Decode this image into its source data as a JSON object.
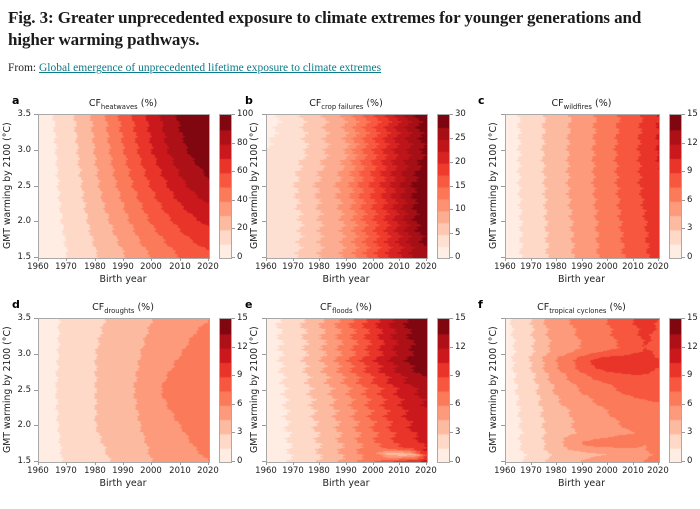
{
  "header": {
    "title": "Fig. 3: Greater unprecedented exposure to climate extremes for younger generations and higher warming pathways.",
    "source_prefix": "From: ",
    "source_link_text": "Global emergence of unprecedented lifetime exposure to climate extremes"
  },
  "colors": {
    "link": "#0c7b8a",
    "axis": "#9a9a9a",
    "text": "#222222",
    "reds_colormap_stops": [
      "#fff5f0",
      "#fee0d2",
      "#fcbba1",
      "#fc9272",
      "#fb6a4a",
      "#ef3b2c",
      "#cb181d",
      "#a50f15",
      "#67000d"
    ]
  },
  "chart_data": [
    {
      "type": "heatmap",
      "letter": "a",
      "title": {
        "prefix": "CF",
        "sub": "heatwaves",
        "suffix": " (%)"
      },
      "xlabel": "Birth year",
      "ylabel": "GMT warming by 2100 (°C)",
      "xlim": [
        1960,
        2020
      ],
      "ylim": [
        1.5,
        3.5
      ],
      "x_ticks": [
        1960,
        1970,
        1980,
        1990,
        2000,
        2010,
        2020
      ],
      "y_ticks": [
        1.5,
        2.0,
        2.5,
        3.0,
        3.5
      ],
      "y_tick_labels_shown": true,
      "colorbar": {
        "min": 0,
        "max": 100,
        "bands": 10,
        "ticks": [
          0,
          20,
          40,
          60,
          80,
          100
        ]
      },
      "wiggle_amp_years": 0.8,
      "grid": {
        "x": [
          1960,
          1965,
          1970,
          1975,
          1980,
          1985,
          1990,
          1995,
          2000,
          2005,
          2010,
          2015,
          2020
        ],
        "y": [
          3.5,
          3.0,
          2.5,
          2.0,
          1.5
        ],
        "values": [
          [
            5,
            10,
            16,
            24,
            33,
            43,
            54,
            64,
            74,
            84,
            92,
            97,
            100
          ],
          [
            5,
            9,
            15,
            22,
            31,
            40,
            50,
            60,
            70,
            79,
            87,
            93,
            97
          ],
          [
            4,
            8,
            14,
            20,
            28,
            36,
            44,
            53,
            61,
            69,
            77,
            83,
            88
          ],
          [
            4,
            7,
            12,
            17,
            24,
            30,
            37,
            44,
            51,
            57,
            63,
            68,
            72
          ],
          [
            3,
            6,
            10,
            14,
            19,
            24,
            29,
            35,
            40,
            45,
            50,
            54,
            57
          ]
        ]
      }
    },
    {
      "type": "heatmap",
      "letter": "b",
      "title": {
        "prefix": "CF",
        "sub": "crop failures",
        "suffix": " (%)"
      },
      "xlabel": "Birth year",
      "ylabel": "GMT warming by 2100 (°C)",
      "xlim": [
        1960,
        2020
      ],
      "ylim": [
        1.5,
        3.5
      ],
      "x_ticks": [
        1960,
        1970,
        1980,
        1990,
        2000,
        2010,
        2020
      ],
      "y_ticks": [
        1.5,
        2.0,
        2.5,
        3.0,
        3.5
      ],
      "y_tick_labels_shown": false,
      "colorbar": {
        "min": 0,
        "max": 30,
        "bands": 12,
        "ticks": [
          0,
          5,
          10,
          15,
          20,
          25,
          30
        ]
      },
      "wiggle_amp_years": 1.8,
      "grid": {
        "x": [
          1960,
          1965,
          1970,
          1975,
          1980,
          1985,
          1990,
          1995,
          2000,
          2005,
          2010,
          2015,
          2020
        ],
        "y": [
          3.5,
          3.0,
          2.5,
          2.0,
          1.5
        ],
        "values": [
          [
            1.5,
            2.6,
            4.0,
            5.5,
            7.0,
            8.5,
            10.5,
            13.5,
            16.5,
            19.5,
            23.0,
            26.5,
            29.5
          ],
          [
            2.6,
            3.2,
            4.2,
            5.0,
            6.8,
            8.3,
            10.0,
            14.0,
            17.0,
            20.5,
            23.5,
            25.5,
            28.0
          ],
          [
            2.6,
            3.5,
            4.8,
            6.5,
            8.0,
            9.5,
            11.5,
            15.0,
            18.0,
            21.0,
            24.5,
            27.5,
            30.0
          ],
          [
            2.6,
            3.2,
            4.4,
            5.5,
            7.5,
            9.0,
            10.5,
            14.0,
            17.0,
            20.0,
            23.5,
            27.0,
            29.5
          ],
          [
            2.6,
            3.0,
            4.5,
            6.0,
            7.5,
            9.0,
            10.5,
            13.5,
            16.5,
            19.5,
            22.0,
            25.0,
            27.0
          ]
        ]
      }
    },
    {
      "type": "heatmap",
      "letter": "c",
      "title": {
        "prefix": "CF",
        "sub": "wildfires",
        "suffix": " (%)"
      },
      "xlabel": "Birth year",
      "ylabel": "GMT warming by 2100 (°C)",
      "xlim": [
        1960,
        2020
      ],
      "ylim": [
        1.5,
        3.5
      ],
      "x_ticks": [
        1960,
        1970,
        1980,
        1990,
        2000,
        2010,
        2020
      ],
      "y_ticks": [
        1.5,
        2.0,
        2.5,
        3.0,
        3.5
      ],
      "y_tick_labels_shown": false,
      "colorbar": {
        "min": 0,
        "max": 15,
        "bands": 10,
        "ticks": [
          0,
          3,
          6,
          9,
          12,
          15
        ]
      },
      "wiggle_amp_years": 1.2,
      "grid": {
        "x": [
          1960,
          1965,
          1970,
          1975,
          1980,
          1985,
          1990,
          1995,
          2000,
          2005,
          2010,
          2015,
          2020
        ],
        "y": [
          3.5,
          3.0,
          2.5,
          2.0,
          1.5
        ],
        "values": [
          [
            0.8,
            1.5,
            2.2,
            3.0,
            3.8,
            4.5,
            5.2,
            6.0,
            6.8,
            7.6,
            8.4,
            9.3,
            10.5
          ],
          [
            0.8,
            1.5,
            2.3,
            3.1,
            3.9,
            4.6,
            5.3,
            6.1,
            7.0,
            7.8,
            8.6,
            9.5,
            10.6
          ],
          [
            0.8,
            1.5,
            2.2,
            3.0,
            3.8,
            4.6,
            5.3,
            6.1,
            6.9,
            7.7,
            8.5,
            9.4,
            10.4
          ],
          [
            0.7,
            1.4,
            2.1,
            2.9,
            3.7,
            4.4,
            5.1,
            5.9,
            6.7,
            7.5,
            8.2,
            9.0,
            10.0
          ],
          [
            0.7,
            1.4,
            2.1,
            2.8,
            3.6,
            4.3,
            5.0,
            5.8,
            6.6,
            7.3,
            8.0,
            8.8,
            9.7
          ]
        ]
      }
    },
    {
      "type": "heatmap",
      "letter": "d",
      "title": {
        "prefix": "CF",
        "sub": "droughts",
        "suffix": " (%)"
      },
      "xlabel": "Birth year",
      "ylabel": "GMT warming by 2100 (°C)",
      "xlim": [
        1960,
        2020
      ],
      "ylim": [
        1.5,
        3.5
      ],
      "x_ticks": [
        1960,
        1970,
        1980,
        1990,
        2000,
        2010,
        2020
      ],
      "y_ticks": [
        1.5,
        2.0,
        2.5,
        3.0,
        3.5
      ],
      "y_tick_labels_shown": true,
      "colorbar": {
        "min": 0,
        "max": 15,
        "bands": 10,
        "ticks": [
          0,
          3,
          6,
          9,
          12,
          15
        ]
      },
      "wiggle_amp_years": 0.8,
      "grid": {
        "x": [
          1960,
          1965,
          1970,
          1975,
          1980,
          1985,
          1990,
          1995,
          2000,
          2005,
          2010,
          2015,
          2020
        ],
        "y": [
          3.5,
          3.0,
          2.5,
          2.0,
          1.5
        ],
        "values": [
          [
            0.8,
            1.3,
            1.8,
            2.3,
            2.8,
            3.1,
            3.5,
            4.0,
            4.5,
            5.0,
            5.5,
            5.8,
            6.0
          ],
          [
            0.8,
            1.3,
            1.9,
            2.4,
            3.0,
            3.4,
            3.8,
            4.4,
            5.0,
            5.5,
            6.0,
            6.3,
            6.5
          ],
          [
            0.9,
            1.4,
            2.0,
            2.5,
            3.0,
            3.5,
            4.0,
            4.7,
            5.5,
            6.3,
            6.8,
            7.3,
            7.2
          ],
          [
            0.8,
            1.3,
            1.9,
            2.4,
            3.0,
            3.4,
            3.8,
            4.4,
            5.0,
            5.5,
            6.0,
            6.3,
            6.5
          ],
          [
            0.7,
            1.2,
            1.7,
            2.2,
            2.6,
            3.0,
            3.4,
            3.9,
            4.5,
            5.0,
            5.5,
            5.8,
            6.0
          ]
        ]
      }
    },
    {
      "type": "heatmap",
      "letter": "e",
      "title": {
        "prefix": "CF",
        "sub": "floods",
        "suffix": " (%)"
      },
      "xlabel": "Birth year",
      "ylabel": "GMT warming by 2100 (°C)",
      "xlim": [
        1960,
        2020
      ],
      "ylim": [
        1.5,
        3.5
      ],
      "x_ticks": [
        1960,
        1970,
        1980,
        1990,
        2000,
        2010,
        2020
      ],
      "y_ticks": [
        1.5,
        2.0,
        2.5,
        3.0,
        3.5
      ],
      "y_tick_labels_shown": false,
      "colorbar": {
        "min": 0,
        "max": 15,
        "bands": 10,
        "ticks": [
          0,
          3,
          6,
          9,
          12,
          15
        ]
      },
      "wiggle_amp_years": 2.0,
      "grid": {
        "x": [
          1960,
          1965,
          1970,
          1975,
          1980,
          1985,
          1990,
          1995,
          2000,
          2005,
          2010,
          2015,
          2020
        ],
        "y": [
          3.5,
          3.1,
          2.9,
          2.5,
          2.0,
          1.7,
          1.6,
          1.5
        ],
        "values": [
          [
            1.0,
            1.6,
            2.4,
            3.3,
            4.4,
            5.6,
            7.0,
            8.5,
            10.0,
            11.5,
            13.0,
            14.2,
            15.0
          ],
          [
            0.9,
            1.5,
            2.2,
            3.1,
            4.2,
            5.4,
            6.6,
            8.0,
            9.5,
            11.0,
            12.5,
            13.5,
            14.5
          ],
          [
            0.9,
            1.5,
            2.3,
            3.2,
            4.3,
            5.6,
            7.2,
            8.8,
            10.2,
            11.6,
            12.9,
            14.0,
            14.8
          ],
          [
            0.8,
            1.3,
            2.0,
            2.8,
            3.7,
            4.7,
            5.8,
            7.0,
            8.3,
            9.6,
            10.8,
            11.8,
            12.6
          ],
          [
            0.7,
            1.2,
            1.8,
            2.5,
            3.3,
            4.2,
            5.2,
            6.3,
            7.5,
            8.7,
            9.8,
            10.7,
            11.4
          ],
          [
            0.6,
            1.1,
            1.7,
            2.3,
            3.1,
            4.0,
            4.9,
            6.0,
            7.1,
            8.2,
            9.2,
            10.0,
            10.6
          ],
          [
            0.6,
            1.1,
            1.7,
            2.3,
            3.1,
            4.0,
            4.9,
            6.0,
            7.0,
            4.0,
            3.5,
            4.0,
            10.4
          ],
          [
            0.6,
            1.1,
            1.7,
            2.3,
            3.1,
            4.0,
            4.9,
            6.0,
            7.1,
            8.2,
            9.2,
            10.0,
            10.6
          ]
        ]
      }
    },
    {
      "type": "heatmap",
      "letter": "f",
      "title": {
        "prefix": "CF",
        "sub": "tropical cyclones",
        "suffix": " (%)"
      },
      "xlabel": "Birth year",
      "ylabel": "GMT warming by 2100 (°C)",
      "xlim": [
        1960,
        2020
      ],
      "ylim": [
        1.5,
        3.5
      ],
      "x_ticks": [
        1960,
        1970,
        1980,
        1990,
        2000,
        2010,
        2020
      ],
      "y_ticks": [
        1.5,
        2.0,
        2.5,
        3.0,
        3.5
      ],
      "y_tick_labels_shown": false,
      "colorbar": {
        "min": 0,
        "max": 15,
        "bands": 10,
        "ticks": [
          0,
          3,
          6,
          9,
          12,
          15
        ]
      },
      "wiggle_amp_years": 1.2,
      "grid": {
        "x": [
          1960,
          1965,
          1970,
          1975,
          1980,
          1985,
          1990,
          1995,
          2000,
          2005,
          2010,
          2015,
          2020
        ],
        "y": [
          3.5,
          3.1,
          2.9,
          2.6,
          2.2,
          1.9,
          1.75,
          1.6,
          1.5
        ],
        "values": [
          [
            1.2,
            2.0,
            3.0,
            4.5,
            5.5,
            6.0,
            6.5,
            7.0,
            7.5,
            8.5,
            9.0,
            9.5,
            9.0
          ],
          [
            1.0,
            1.8,
            2.8,
            4.0,
            5.0,
            5.5,
            6.0,
            6.5,
            7.0,
            7.5,
            8.5,
            9.0,
            8.5
          ],
          [
            1.0,
            2.0,
            3.2,
            4.8,
            6.2,
            7.2,
            8.6,
            9.6,
            10.2,
            10.2,
            9.8,
            9.6,
            9.2
          ],
          [
            0.9,
            1.7,
            2.5,
            3.8,
            5.0,
            5.8,
            6.5,
            7.0,
            7.5,
            8.0,
            8.5,
            8.5,
            8.5
          ],
          [
            0.8,
            1.5,
            2.2,
            3.2,
            4.0,
            4.5,
            5.0,
            5.5,
            6.0,
            6.3,
            6.5,
            6.8,
            7.0
          ],
          [
            0.8,
            1.4,
            2.0,
            3.0,
            3.8,
            4.3,
            4.8,
            5.2,
            5.5,
            5.8,
            6.0,
            6.3,
            6.5
          ],
          [
            0.8,
            1.5,
            2.1,
            3.1,
            4.2,
            5.2,
            6.3,
            6.6,
            6.6,
            6.9,
            6.3,
            6.0,
            6.5
          ],
          [
            0.7,
            1.3,
            1.8,
            2.7,
            3.4,
            3.8,
            4.0,
            4.3,
            4.6,
            4.8,
            5.5,
            5.9,
            6.2
          ],
          [
            0.7,
            1.3,
            1.8,
            2.8,
            3.5,
            4.0,
            4.5,
            5.0,
            5.5,
            5.7,
            5.8,
            6.0,
            6.2
          ]
        ]
      }
    }
  ]
}
